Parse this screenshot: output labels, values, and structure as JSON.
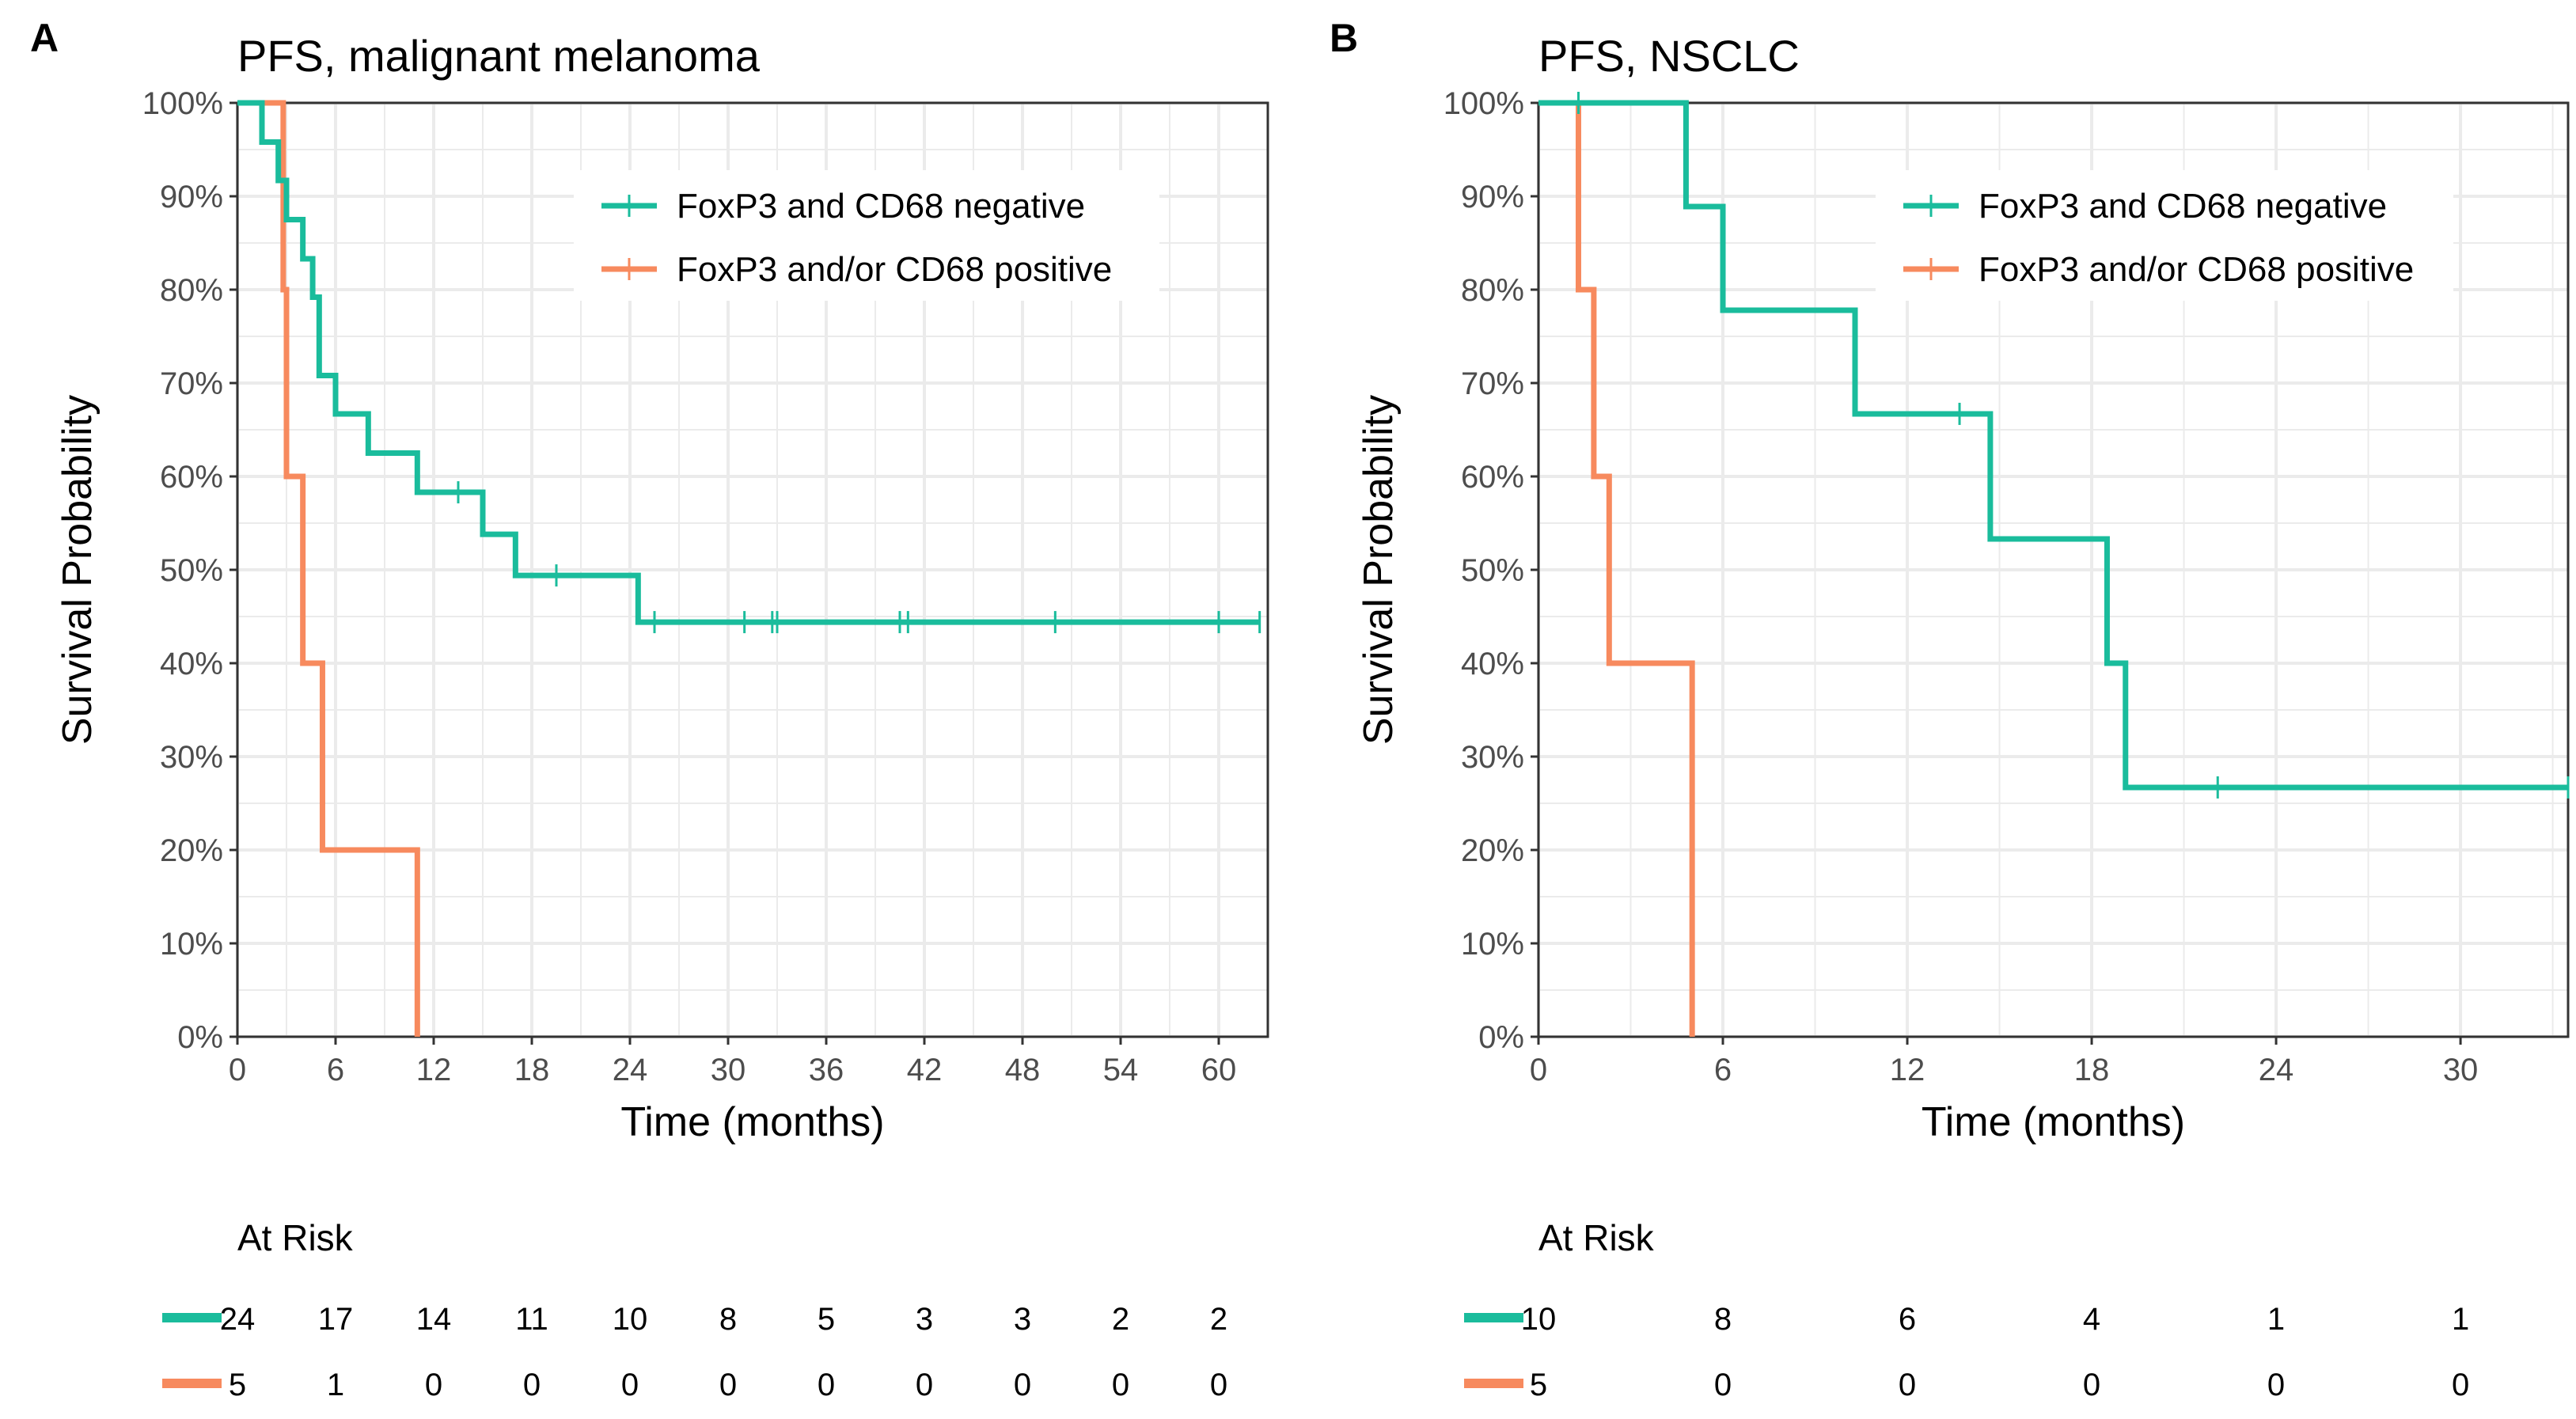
{
  "colors": {
    "negative": "#1abc9c",
    "positive": "#f78a5e",
    "text": "#000000",
    "tick": "#4d4d4d",
    "grid": "#ebebeb"
  },
  "chart_data": [
    {
      "type": "line",
      "subtype": "kaplan-meier",
      "panel_label": "A",
      "title": "PFS, malignant melanoma",
      "xlabel": "Time (months)",
      "ylabel": "Survival Probability",
      "xlim": [
        0,
        63
      ],
      "ylim": [
        0,
        1
      ],
      "x_ticks": [
        0,
        6,
        12,
        18,
        24,
        30,
        36,
        42,
        48,
        54,
        60
      ],
      "x_tick_labels": [
        "0",
        "6",
        "12",
        "18",
        "24",
        "30",
        "36",
        "42",
        "48",
        "54",
        "60"
      ],
      "y_ticks": [
        0,
        0.1,
        0.2,
        0.3,
        0.4,
        0.5,
        0.6,
        0.7,
        0.8,
        0.9,
        1
      ],
      "y_tick_labels": [
        "0%",
        "10%",
        "20%",
        "30%",
        "40%",
        "50%",
        "60%",
        "70%",
        "80%",
        "90%",
        "100%"
      ],
      "grid": true,
      "legend_position": "top-right",
      "series": [
        {
          "name": "FoxP3 and CD68 negative",
          "color_key": "negative",
          "x": [
            0,
            1.5,
            2.5,
            3.0,
            4.0,
            4.6,
            5.0,
            6.0,
            8.0,
            11.0,
            15.0,
            17.0,
            24.5,
            62.5
          ],
          "y": [
            1.0,
            0.958,
            0.917,
            0.875,
            0.833,
            0.792,
            0.708,
            0.667,
            0.625,
            0.583,
            0.538,
            0.494,
            0.444,
            0.444
          ],
          "censored_x": [
            13.5,
            19.5,
            25.5,
            31.0,
            32.7,
            33.0,
            40.5,
            41.0,
            50.0,
            60.0,
            62.5
          ],
          "censored_y": [
            0.583,
            0.494,
            0.444,
            0.444,
            0.444,
            0.444,
            0.444,
            0.444,
            0.444,
            0.444,
            0.444
          ]
        },
        {
          "name": "FoxP3 and/or CD68 positive",
          "color_key": "positive",
          "x": [
            0,
            2.8,
            3.0,
            4.0,
            5.2,
            11.0
          ],
          "y": [
            1.0,
            0.8,
            0.6,
            0.4,
            0.2,
            0.0
          ],
          "censored_x": [],
          "censored_y": []
        }
      ],
      "at_risk": {
        "title": "At Risk",
        "times": [
          0,
          6,
          12,
          18,
          24,
          30,
          36,
          42,
          48,
          54,
          60
        ],
        "rows": [
          {
            "color_key": "negative",
            "values": [
              "24",
              "17",
              "14",
              "11",
              "10",
              "8",
              "5",
              "3",
              "3",
              "2",
              "2"
            ]
          },
          {
            "color_key": "positive",
            "values": [
              "5",
              "1",
              "0",
              "0",
              "0",
              "0",
              "0",
              "0",
              "0",
              "0",
              "0"
            ]
          }
        ]
      }
    },
    {
      "type": "line",
      "subtype": "kaplan-meier",
      "panel_label": "B",
      "title": "PFS, NSCLC",
      "xlabel": "Time (months)",
      "ylabel": "Survival Probability",
      "xlim": [
        0,
        33.5
      ],
      "ylim": [
        0,
        1
      ],
      "x_ticks": [
        0,
        6,
        12,
        18,
        24,
        30
      ],
      "x_tick_labels": [
        "0",
        "6",
        "12",
        "18",
        "24",
        "30"
      ],
      "y_ticks": [
        0,
        0.1,
        0.2,
        0.3,
        0.4,
        0.5,
        0.6,
        0.7,
        0.8,
        0.9,
        1
      ],
      "y_tick_labels": [
        "0%",
        "10%",
        "20%",
        "30%",
        "40%",
        "50%",
        "60%",
        "70%",
        "80%",
        "90%",
        "100%"
      ],
      "grid": true,
      "legend_position": "top-right",
      "series": [
        {
          "name": "FoxP3 and CD68 negative",
          "color_key": "negative",
          "x": [
            0,
            4.8,
            6.0,
            10.3,
            14.7,
            18.5,
            19.1,
            33.5
          ],
          "y": [
            1.0,
            0.889,
            0.778,
            0.667,
            0.533,
            0.4,
            0.267,
            0.267
          ],
          "censored_x": [
            1.3,
            13.7,
            22.1,
            33.5
          ],
          "censored_y": [
            1.0,
            0.667,
            0.267,
            0.267
          ]
        },
        {
          "name": "FoxP3 and/or CD68 positive",
          "color_key": "positive",
          "x": [
            0,
            1.3,
            1.8,
            2.3,
            5.0
          ],
          "y": [
            1.0,
            0.8,
            0.6,
            0.4,
            0.0
          ],
          "censored_x": [],
          "censored_y": []
        }
      ],
      "at_risk": {
        "title": "At Risk",
        "times": [
          0,
          6,
          12,
          18,
          24,
          30
        ],
        "rows": [
          {
            "color_key": "negative",
            "values": [
              "10",
              "8",
              "6",
              "4",
              "1",
              "1"
            ]
          },
          {
            "color_key": "positive",
            "values": [
              "5",
              "0",
              "0",
              "0",
              "0",
              "0"
            ]
          }
        ]
      }
    }
  ]
}
